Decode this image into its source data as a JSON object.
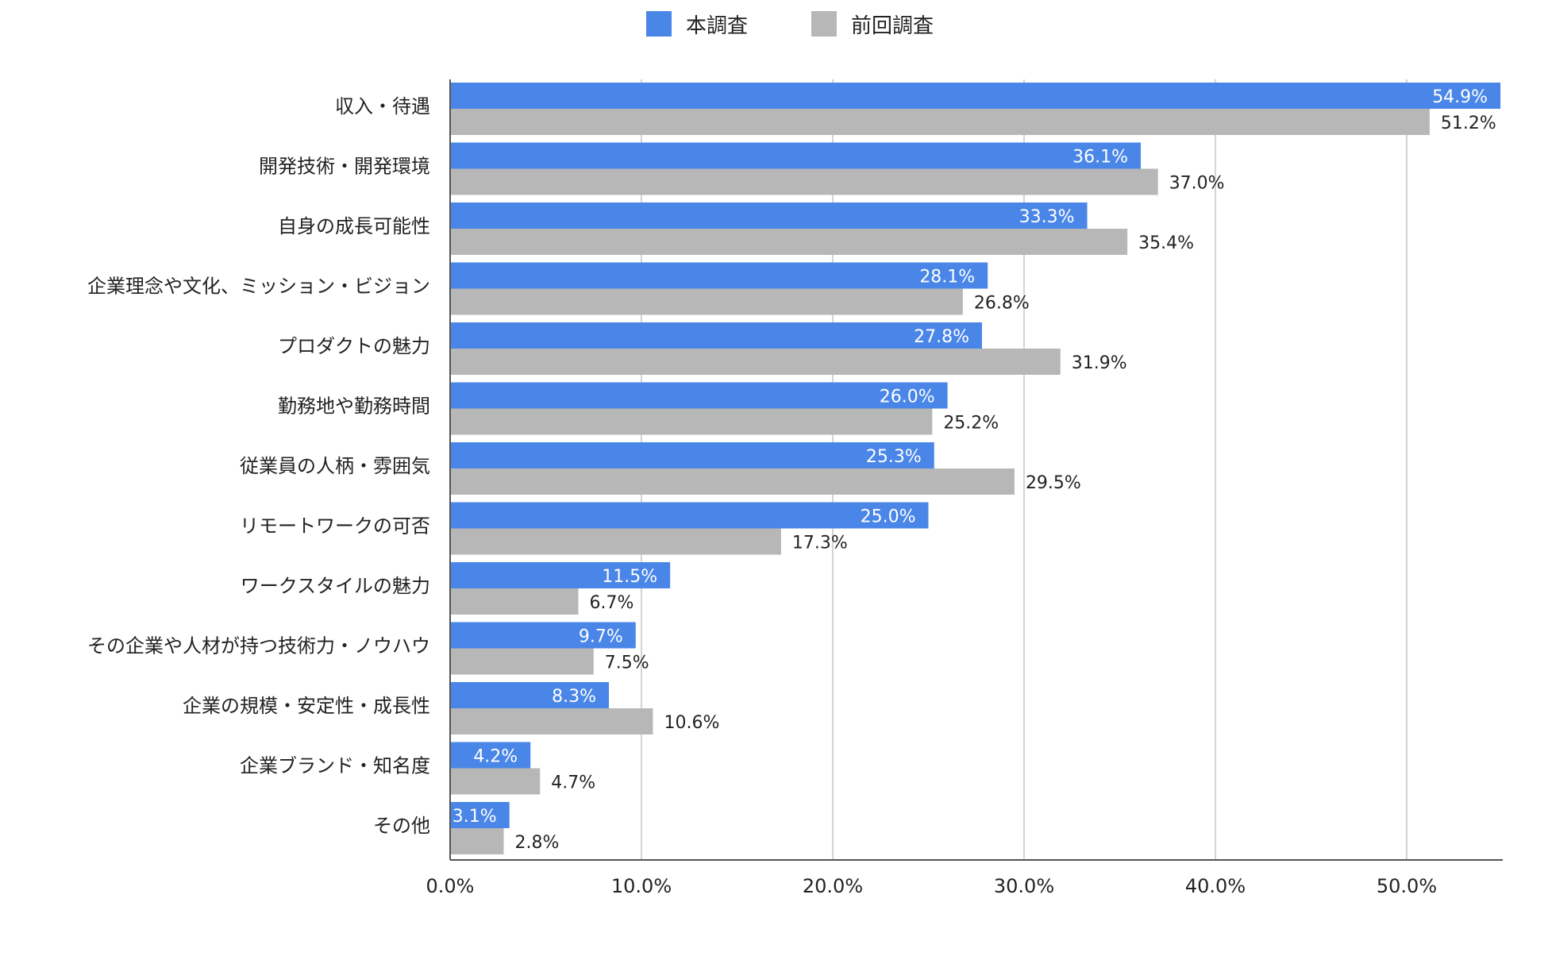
{
  "chart_data": {
    "type": "bar",
    "orientation": "horizontal",
    "categories": [
      "収入・待遇",
      "開発技術・開発環境",
      "自身の成長可能性",
      "企業理念や文化、ミッション・ビジョン",
      "プロダクトの魅力",
      "勤務地や勤務時間",
      "従業員の人柄・雰囲気",
      "リモートワークの可否",
      "ワークスタイルの魅力",
      "その企業や人材が持つ技術力・ノウハウ",
      "企業の規模・安定性・成長性",
      "企業ブランド・知名度",
      "その他"
    ],
    "series": [
      {
        "name": "本調査",
        "color": "#4a86e8",
        "values": [
          54.9,
          36.1,
          33.3,
          28.1,
          27.8,
          26.0,
          25.3,
          25.0,
          11.5,
          9.7,
          8.3,
          4.2,
          3.1
        ],
        "labels": [
          "54.9%",
          "36.1%",
          "33.3%",
          "28.1%",
          "27.8%",
          "26.0%",
          "25.3%",
          "25.0%",
          "11.5%",
          "9.7%",
          "8.3%",
          "4.2%",
          "3.1%"
        ]
      },
      {
        "name": "前回調査",
        "color": "#b7b7b7",
        "values": [
          51.2,
          37.0,
          35.4,
          26.8,
          31.9,
          25.2,
          29.5,
          17.3,
          6.7,
          7.5,
          10.6,
          4.7,
          2.8
        ],
        "labels": [
          "51.2%",
          "37.0%",
          "35.4%",
          "26.8%",
          "31.9%",
          "25.2%",
          "29.5%",
          "17.3%",
          "6.7%",
          "7.5%",
          "10.6%",
          "4.7%",
          "2.8%"
        ]
      }
    ],
    "xlim": [
      0,
      55
    ],
    "xticks": [
      0,
      10,
      20,
      30,
      40,
      50
    ],
    "xtick_labels": [
      "0.0%",
      "10.0%",
      "20.0%",
      "30.0%",
      "40.0%",
      "50.0%"
    ],
    "grid": true,
    "legend_position": "top-center"
  }
}
